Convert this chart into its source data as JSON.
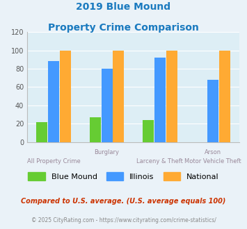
{
  "title_line1": "2019 Blue Mound",
  "title_line2": "Property Crime Comparison",
  "title_color": "#1a7abf",
  "blue_mound": [
    22,
    27,
    24,
    0
  ],
  "illinois": [
    88,
    80,
    92,
    68
  ],
  "national": [
    100,
    100,
    100,
    100
  ],
  "bar_color_green": "#66cc33",
  "bar_color_blue": "#4499ff",
  "bar_color_orange": "#ffaa33",
  "ylim": [
    0,
    120
  ],
  "yticks": [
    0,
    20,
    40,
    60,
    80,
    100,
    120
  ],
  "legend_labels": [
    "Blue Mound",
    "Illinois",
    "National"
  ],
  "top_x_labels": [
    "",
    "Burglary",
    "",
    "Arson"
  ],
  "bottom_x_labels": [
    "All Property Crime",
    "",
    "Larceny & Theft",
    "Motor Vehicle Theft"
  ],
  "footnote1": "Compared to U.S. average. (U.S. average equals 100)",
  "footnote2": "© 2025 CityRating.com - https://www.cityrating.com/crime-statistics/",
  "footnote1_color": "#cc3300",
  "footnote2_color": "#888888",
  "bg_color": "#eaf2f8",
  "plot_bg_color": "#ddeef5",
  "label_color": "#998899"
}
